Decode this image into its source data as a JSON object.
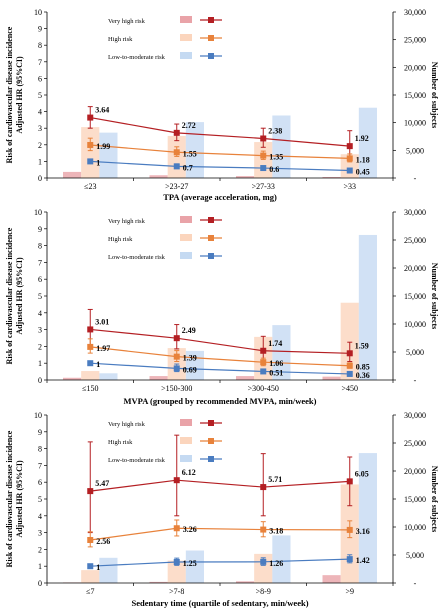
{
  "chart_data": [
    {
      "type": "bar",
      "combo": "bar+line",
      "xlabel": "TPA (average acceleration, mg)",
      "ylabel": [
        "Risk of cardiovascular disease incidence",
        "Adjusted HR (95%CI)"
      ],
      "y2label": "Number of subjects",
      "categories": [
        "≤23",
        ">23-27",
        ">27-33",
        ">33"
      ],
      "ylim": [
        0,
        10
      ],
      "yticks": [
        "0",
        "1",
        "2",
        "3",
        "4",
        "5",
        "6",
        "7",
        "8",
        "9",
        "10"
      ],
      "y2lim": [
        0,
        30000
      ],
      "y2ticks": [
        "-",
        "5,000",
        "10,000",
        "15,000",
        "20,000",
        "25,000",
        "30,000"
      ],
      "legend": [
        "Very high risk",
        "High risk",
        "Low-to-moderate risk"
      ],
      "legend_position": "top-left",
      "colors": {
        "very_high_bar": "#e9a3a8",
        "very_high_line": "#b41f23",
        "high_bar": "#fbd5bd",
        "high_line": "#e8823b",
        "low_bar": "#c5daf2",
        "low_line": "#4a7cc0"
      },
      "bars": [
        {
          "name": "Very high risk",
          "values": [
            1100,
            500,
            350,
            180
          ]
        },
        {
          "name": "High risk",
          "values": [
            9200,
            7600,
            6500,
            4300
          ]
        },
        {
          "name": "Low-to-moderate risk",
          "values": [
            8200,
            10100,
            11300,
            12700
          ]
        }
      ],
      "lines": [
        {
          "name": "Very high risk",
          "values": [
            3.64,
            2.72,
            2.38,
            1.92
          ],
          "labels": [
            "3.64",
            "2.72",
            "2.38",
            "1.92"
          ],
          "ci_low": [
            3.0,
            2.25,
            1.85,
            1.05
          ],
          "ci_high": [
            4.3,
            3.25,
            3.0,
            2.85
          ]
        },
        {
          "name": "High risk",
          "values": [
            1.99,
            1.55,
            1.35,
            1.18
          ],
          "labels": [
            "1.99",
            "1.55",
            "1.35",
            "1.18"
          ],
          "ci_low": [
            1.65,
            1.3,
            1.12,
            0.97
          ],
          "ci_high": [
            2.4,
            1.88,
            1.62,
            1.45
          ]
        },
        {
          "name": "Low-to-moderate risk",
          "values": [
            1.0,
            0.7,
            0.6,
            0.45
          ],
          "labels": [
            "1",
            "0.7",
            "0.6",
            "0.45"
          ],
          "ci_low": [
            1.0,
            0.58,
            0.5,
            0.36
          ],
          "ci_high": [
            1.0,
            0.85,
            0.72,
            0.56
          ]
        }
      ]
    },
    {
      "type": "bar",
      "combo": "bar+line",
      "xlabel": "MVPA (grouped by recommended MVPA, min/week)",
      "ylabel": [
        "Risk of cardiovascular disease incidence",
        "Adjusted HR (95%CI)"
      ],
      "y2label": "Number of subjects",
      "categories": [
        "≤150",
        ">150-300",
        ">300-450",
        ">450"
      ],
      "ylim": [
        0,
        10
      ],
      "yticks": [
        "0",
        "1",
        "2",
        "3",
        "4",
        "5",
        "6",
        "7",
        "8",
        "9",
        "10"
      ],
      "y2lim": [
        0,
        30000
      ],
      "y2ticks": [
        "-",
        "5,000",
        "10,000",
        "15,000",
        "20,000",
        "25,000",
        "30,000"
      ],
      "legend": [
        "Very high risk",
        "High risk",
        "Low-to-moderate risk"
      ],
      "legend_position": "top-left",
      "colors": {
        "very_high_bar": "#e9a3a8",
        "very_high_line": "#b41f23",
        "high_bar": "#fbd5bd",
        "high_line": "#e8823b",
        "low_bar": "#c5daf2",
        "low_line": "#4a7cc0"
      },
      "bars": [
        {
          "name": "Very high risk",
          "values": [
            400,
            700,
            700,
            600
          ]
        },
        {
          "name": "High risk",
          "values": [
            1600,
            5700,
            7700,
            13800
          ]
        },
        {
          "name": "Low-to-moderate risk",
          "values": [
            1200,
            5200,
            9800,
            25900
          ]
        }
      ],
      "lines": [
        {
          "name": "Very high risk",
          "values": [
            3.01,
            2.49,
            1.74,
            1.59
          ],
          "labels": [
            "3.01",
            "2.49",
            "1.74",
            "1.59"
          ],
          "ci_low": [
            2.1,
            1.85,
            1.15,
            1.1
          ],
          "ci_high": [
            4.2,
            3.3,
            2.6,
            2.25
          ]
        },
        {
          "name": "High risk",
          "values": [
            1.97,
            1.39,
            1.06,
            0.85
          ],
          "labels": [
            "1.97",
            "1.39",
            "1.06",
            "0.85"
          ],
          "ci_low": [
            1.6,
            1.1,
            0.85,
            0.7
          ],
          "ci_high": [
            2.45,
            1.75,
            1.3,
            1.02
          ]
        },
        {
          "name": "Low-to-moderate risk",
          "values": [
            1.0,
            0.69,
            0.51,
            0.36
          ],
          "labels": [
            "1",
            "0.69",
            "0.51",
            "0.36"
          ],
          "ci_low": [
            1.0,
            0.5,
            0.4,
            0.28
          ],
          "ci_high": [
            1.0,
            0.95,
            0.65,
            0.46
          ]
        }
      ]
    },
    {
      "type": "bar",
      "combo": "bar+line",
      "xlabel": "Sedentary time (quartile of sedentary, min/week)",
      "ylabel": [
        "Risk of cardiovascular disease incidence",
        "Adjusted HR (95%CI)"
      ],
      "y2label": "Number of subjects",
      "categories": [
        "≤7",
        ">7-8",
        ">8-9",
        ">9"
      ],
      "ylim": [
        0,
        10
      ],
      "yticks": [
        "0",
        "1",
        "2",
        "3",
        "4",
        "5",
        "6",
        "7",
        "8",
        "9",
        "10"
      ],
      "y2lim": [
        0,
        30000
      ],
      "y2ticks": [
        "-",
        "5,000",
        "10,000",
        "15,000",
        "20,000",
        "25,000",
        "30,000"
      ],
      "legend": [
        "Very high risk",
        "High risk",
        "Low-to-moderate risk"
      ],
      "legend_position": "top-left",
      "colors": {
        "very_high_bar": "#e9a3a8",
        "very_high_line": "#b41f23",
        "high_bar": "#fbd5bd",
        "high_line": "#e8823b",
        "low_bar": "#c5daf2",
        "low_line": "#4a7cc0"
      },
      "bars": [
        {
          "name": "Very high risk",
          "values": [
            100,
            200,
            300,
            1400
          ]
        },
        {
          "name": "High risk",
          "values": [
            2300,
            4000,
            5200,
            17600
          ]
        },
        {
          "name": "Low-to-moderate risk",
          "values": [
            4500,
            5800,
            8500,
            23200
          ]
        }
      ],
      "lines": [
        {
          "name": "Very high risk",
          "values": [
            5.47,
            6.12,
            5.71,
            6.05
          ],
          "labels": [
            "5.47",
            "6.12",
            "5.71",
            "6.05"
          ],
          "ci_low": [
            3.0,
            4.0,
            4.0,
            4.6
          ],
          "ci_high": [
            8.4,
            8.8,
            7.7,
            7.5
          ]
        },
        {
          "name": "High risk",
          "values": [
            2.56,
            3.26,
            3.18,
            3.16
          ],
          "labels": [
            "2.56",
            "3.26",
            "3.18",
            "3.16"
          ],
          "ci_low": [
            2.15,
            2.8,
            2.75,
            2.7
          ],
          "ci_high": [
            3.05,
            3.75,
            3.65,
            3.7
          ]
        },
        {
          "name": "Low-to-moderate risk",
          "values": [
            1.0,
            1.25,
            1.26,
            1.42
          ],
          "labels": [
            "1",
            "1.25",
            "1.26",
            "1.42"
          ],
          "ci_low": [
            1.0,
            1.05,
            1.05,
            1.2
          ],
          "ci_high": [
            1.0,
            1.48,
            1.5,
            1.68
          ]
        }
      ]
    }
  ]
}
